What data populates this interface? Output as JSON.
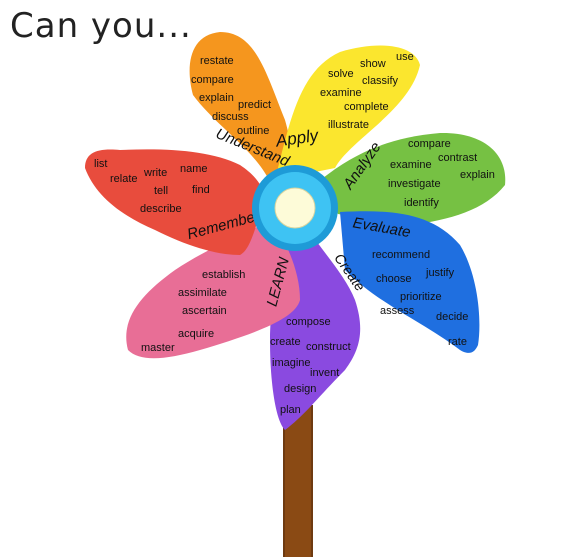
{
  "title": "Can you...",
  "center_label": "LEARN",
  "petals": [
    {
      "key": "remember",
      "category": "Remember",
      "color": "#e84c3d",
      "verbs": [
        "list",
        "write",
        "name",
        "relate",
        "tell",
        "find",
        "describe"
      ]
    },
    {
      "key": "understand",
      "category": "Understand",
      "color": "#f5961e",
      "verbs": [
        "restate",
        "compare",
        "explain",
        "predict",
        "discuss",
        "outline"
      ]
    },
    {
      "key": "apply",
      "category": "Apply",
      "color": "#fbe62e",
      "verbs": [
        "show",
        "use",
        "solve",
        "classify",
        "examine",
        "complete",
        "illustrate"
      ]
    },
    {
      "key": "analyze",
      "category": "Analyze",
      "color": "#76c143",
      "verbs": [
        "compare",
        "examine",
        "contrast",
        "investigate",
        "explain",
        "identify"
      ]
    },
    {
      "key": "evaluate",
      "category": "Evaluate",
      "color": "#1f6fe0",
      "verbs": [
        "recommend",
        "choose",
        "justify",
        "prioritize",
        "assess",
        "decide",
        "rate"
      ]
    },
    {
      "key": "create",
      "category": "Create",
      "color": "#8a4ae0",
      "verbs": [
        "compose",
        "create",
        "construct",
        "imagine",
        "invent",
        "design",
        "plan"
      ]
    },
    {
      "key": "learn",
      "category": "LEARN",
      "color": "#e86e96",
      "verbs": [
        "establish",
        "assimilate",
        "ascertain",
        "acquire",
        "master"
      ]
    }
  ]
}
